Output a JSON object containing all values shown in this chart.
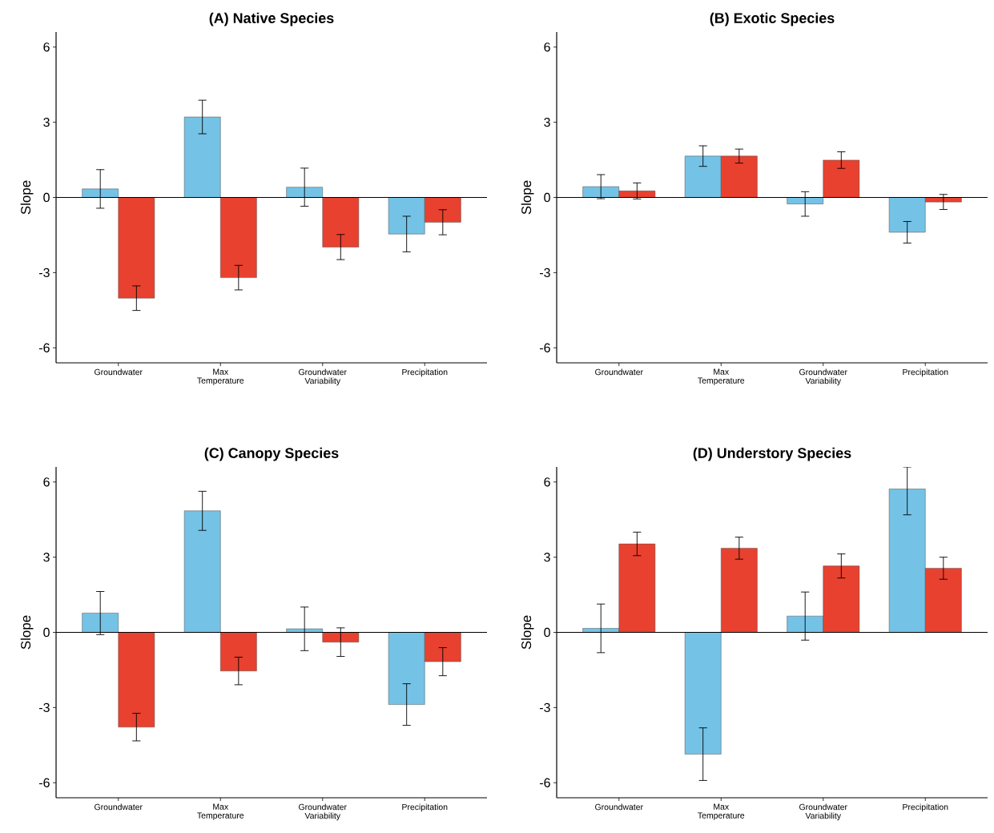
{
  "chart_data": [
    {
      "type": "bar",
      "title": "(A) Native Species",
      "ylabel": "Slope",
      "categories": [
        "Groundwater",
        "Max Temperature",
        "Groundwater Variability",
        "Precipitation"
      ],
      "series": [
        {
          "color": "#74c3e6",
          "values": [
            0.34,
            3.21,
            0.41,
            -1.46
          ],
          "errors": [
            0.77,
            0.67,
            0.76,
            0.71
          ]
        },
        {
          "color": "#e8412f",
          "values": [
            -4.02,
            -3.2,
            -1.98,
            -0.99
          ],
          "errors": [
            0.49,
            0.49,
            0.5,
            0.5
          ]
        }
      ],
      "ylim": [
        -6.6,
        6.6
      ],
      "yticks": [
        -6,
        -3,
        0,
        3,
        6
      ],
      "ref_lines": [
        {
          "axis": "y",
          "value": 0
        }
      ]
    },
    {
      "type": "bar",
      "title": "(B) Exotic Species",
      "ylabel": "Slope",
      "categories": [
        "Groundwater",
        "Max Temperature",
        "Groundwater Variability",
        "Precipitation"
      ],
      "series": [
        {
          "color": "#74c3e6",
          "values": [
            0.43,
            1.65,
            -0.26,
            -1.39
          ],
          "errors": [
            0.48,
            0.41,
            0.49,
            0.43
          ]
        },
        {
          "color": "#e8412f",
          "values": [
            0.26,
            1.65,
            1.49,
            -0.18
          ],
          "errors": [
            0.32,
            0.28,
            0.33,
            0.3
          ]
        }
      ],
      "ylim": [
        -6.6,
        6.6
      ],
      "yticks": [
        -6,
        -3,
        0,
        3,
        6
      ],
      "ref_lines": [
        {
          "axis": "y",
          "value": 0
        }
      ]
    },
    {
      "type": "bar",
      "title": "(C) Canopy Species",
      "ylabel": "Slope",
      "categories": [
        "Groundwater",
        "Max Temperature",
        "Groundwater Variability",
        "Precipitation"
      ],
      "series": [
        {
          "color": "#74c3e6",
          "values": [
            0.77,
            4.85,
            0.14,
            -2.88
          ],
          "errors": [
            0.86,
            0.78,
            0.87,
            0.83
          ]
        },
        {
          "color": "#e8412f",
          "values": [
            -3.78,
            -1.54,
            -0.39,
            -1.17
          ],
          "errors": [
            0.55,
            0.55,
            0.57,
            0.56
          ]
        }
      ],
      "ylim": [
        -6.6,
        6.6
      ],
      "yticks": [
        -6,
        -3,
        0,
        3,
        6
      ],
      "ref_lines": [
        {
          "axis": "y",
          "value": 0
        }
      ]
    },
    {
      "type": "bar",
      "title": "(D) Understory Species",
      "ylabel": "Slope",
      "categories": [
        "Groundwater",
        "Max Temperature",
        "Groundwater Variability",
        "Precipitation"
      ],
      "series": [
        {
          "color": "#74c3e6",
          "values": [
            0.16,
            -4.86,
            0.65,
            5.72
          ],
          "errors": [
            0.97,
            1.05,
            0.96,
            [
              4.69,
              6.6
            ]
          ]
        },
        {
          "color": "#e8412f",
          "values": [
            3.53,
            3.36,
            2.65,
            2.56
          ],
          "errors": [
            0.47,
            0.44,
            0.48,
            0.44
          ]
        }
      ],
      "ylim": [
        -6.6,
        6.6
      ],
      "yticks": [
        -6,
        -3,
        0,
        3,
        6
      ],
      "ref_lines": [
        {
          "axis": "y",
          "value": 0
        }
      ]
    }
  ]
}
